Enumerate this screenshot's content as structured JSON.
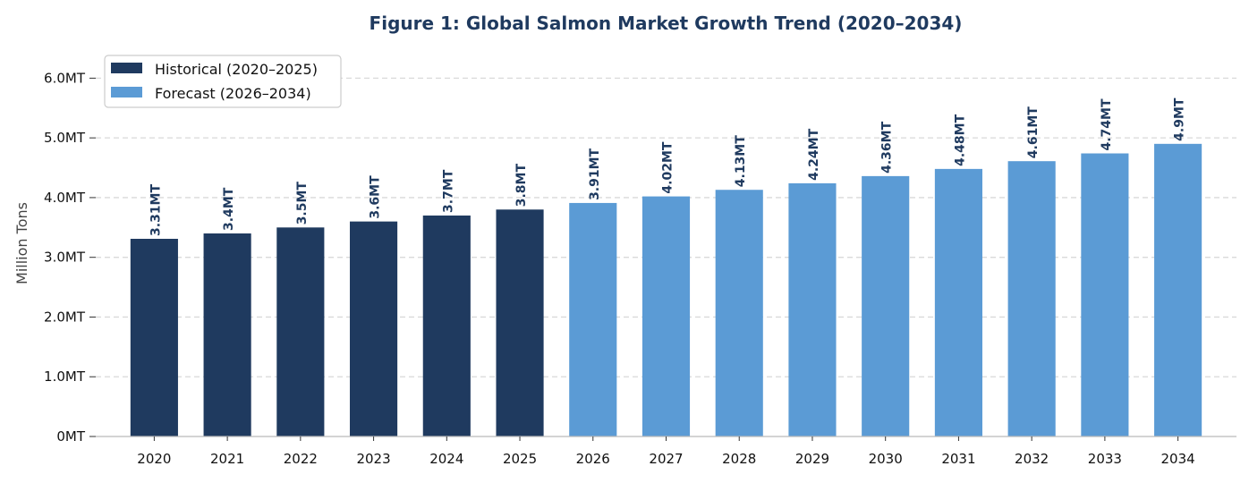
{
  "chart_data": {
    "type": "bar",
    "title": "Figure 1: Global Salmon Market Growth Trend (2020–2034)",
    "xlabel": "",
    "ylabel": "Million Tons",
    "ylim": [
      0,
      6.5
    ],
    "yticks": [
      0,
      1,
      2,
      3,
      4,
      5,
      6
    ],
    "ytick_labels": [
      "0MT",
      "1.0MT",
      "2.0MT",
      "3.0MT",
      "4.0MT",
      "5.0MT",
      "6.0MT"
    ],
    "grid": "horizontal dashed",
    "legend_position": "top-left",
    "categories": [
      "2020",
      "2021",
      "2022",
      "2023",
      "2024",
      "2025",
      "2026",
      "2027",
      "2028",
      "2029",
      "2030",
      "2031",
      "2032",
      "2033",
      "2034"
    ],
    "series": [
      {
        "name": "Historical (2020–2025)",
        "color": "#1f3a5f",
        "values": [
          3.31,
          3.4,
          3.5,
          3.6,
          3.7,
          3.8,
          null,
          null,
          null,
          null,
          null,
          null,
          null,
          null,
          null
        ],
        "labels": [
          "3.31MT",
          "3.4MT",
          "3.5MT",
          "3.6MT",
          "3.7MT",
          "3.8MT",
          null,
          null,
          null,
          null,
          null,
          null,
          null,
          null,
          null
        ]
      },
      {
        "name": "Forecast (2026–2034)",
        "color": "#5b9bd5",
        "values": [
          null,
          null,
          null,
          null,
          null,
          null,
          3.91,
          4.02,
          4.13,
          4.24,
          4.36,
          4.48,
          4.61,
          4.74,
          4.9
        ],
        "labels": [
          null,
          null,
          null,
          null,
          null,
          null,
          "3.91MT",
          "4.02MT",
          "4.13MT",
          "4.24MT",
          "4.36MT",
          "4.48MT",
          "4.61MT",
          "4.74MT",
          "4.9MT"
        ]
      }
    ],
    "colors": {
      "title": "#1f3a5f",
      "label": "#1f3a5f",
      "grid": "#d9d9d9"
    }
  }
}
